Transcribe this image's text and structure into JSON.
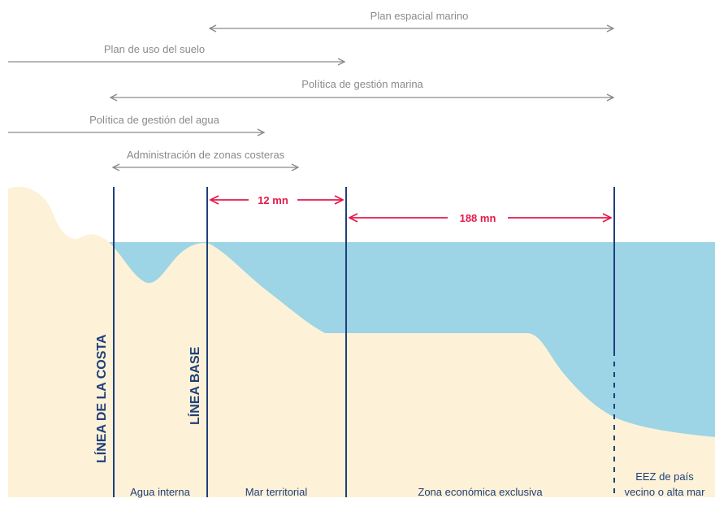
{
  "colors": {
    "land": "#fdf2d8",
    "water": "#9dd4e6",
    "boundary": "#1f3f7a",
    "range_arrow": "#8a8a8a",
    "distance_arrow": "#e5194a"
  },
  "ranges": [
    {
      "label": "Plan espacial marino",
      "start": "baseline",
      "end": "eez_limit"
    },
    {
      "label": "Plan de uso del suelo",
      "start": "page_left",
      "end": "territorial_limit"
    },
    {
      "label": "Política de gestión marina",
      "start": "coastline",
      "end": "eez_limit"
    },
    {
      "label": "Política de gestión del agua",
      "start": "page_left",
      "end": "mid_territorial"
    },
    {
      "label": "Administración de zonas costeras",
      "start": "coastline",
      "end": "mid_territorial_2"
    }
  ],
  "distances": [
    {
      "label": "12 mn"
    },
    {
      "label": "188 mn"
    }
  ],
  "vertical_lines": {
    "coastline": "LÍNEA DE LA COSTA",
    "baseline": "LÍNEA BASE"
  },
  "zones": [
    {
      "label": "Agua interna"
    },
    {
      "label": "Mar territorial"
    },
    {
      "label": "Zona económica exclusiva"
    },
    {
      "label_line1": "EEZ de país",
      "label_line2": "vecino o alta mar"
    }
  ]
}
